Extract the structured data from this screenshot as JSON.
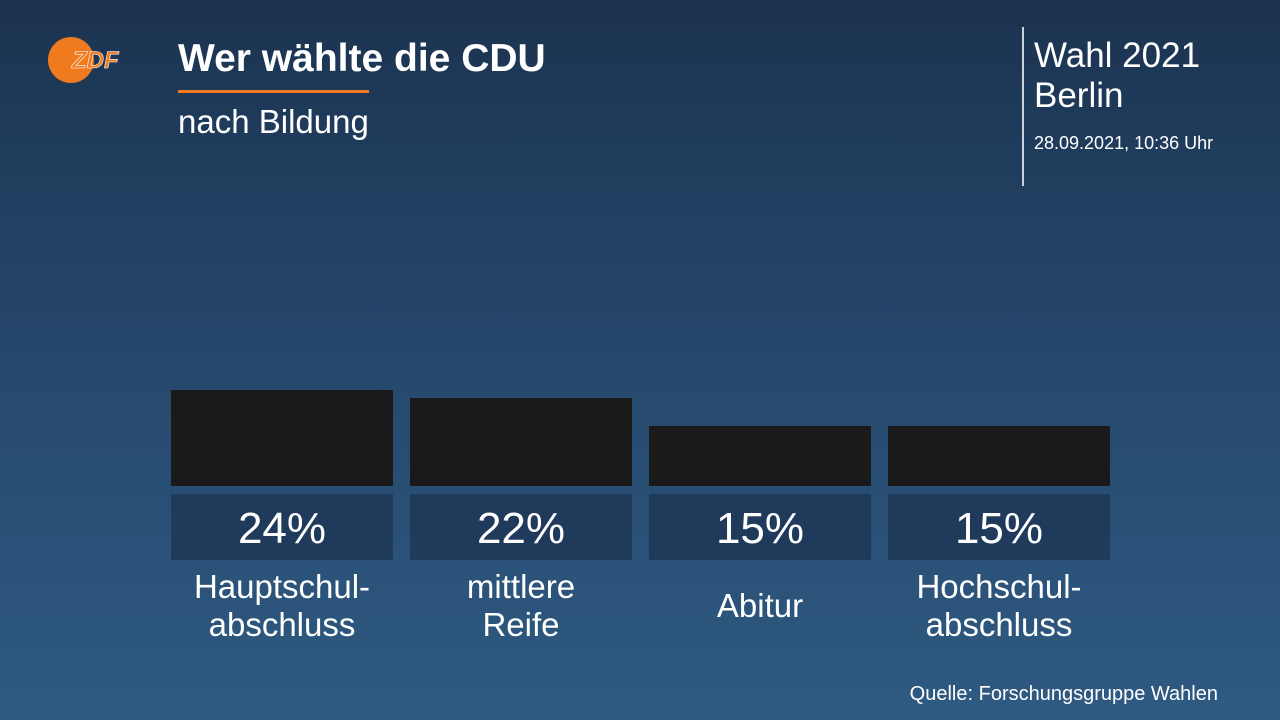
{
  "header": {
    "title": "Wer wählte die CDU",
    "subtitle": "nach Bildung",
    "election_title": "Wahl 2021",
    "election_region": "Berlin",
    "timestamp": "28.09.2021, 10:36 Uhr",
    "logo_text": "ZDF",
    "logo_icon": "zdf-logo",
    "accent_color": "#f07a1e"
  },
  "chart_data": {
    "type": "bar",
    "categories": [
      "Hauptschul-\nabschluss",
      "mittlere\nReife",
      "Abitur",
      "Hochschul-\nabschluss"
    ],
    "values": [
      24,
      22,
      15,
      15
    ],
    "value_labels": [
      "24%",
      "22%",
      "15%",
      "15%"
    ],
    "unit": "%",
    "ylim": [
      0,
      24
    ],
    "bar_color": "#1a1a1a",
    "label_box_color": "#1f3a5a",
    "grid": false,
    "legend": "none"
  },
  "footer": {
    "source": "Quelle: Forschungsgruppe Wahlen"
  }
}
